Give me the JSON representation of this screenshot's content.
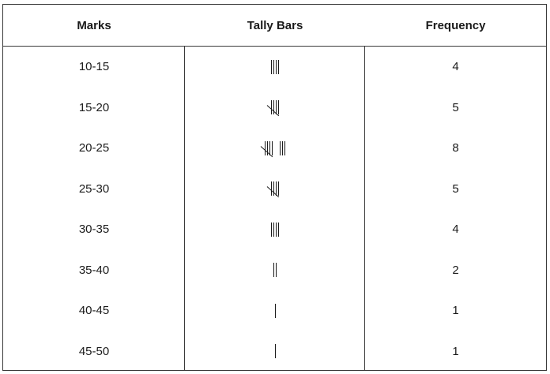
{
  "table": {
    "headers": [
      "Marks",
      "Tally Bars",
      "Frequency"
    ],
    "rows": [
      {
        "marks": "10-15",
        "frequency": "4"
      },
      {
        "marks": "15-20",
        "frequency": "5"
      },
      {
        "marks": "20-25",
        "frequency": "8"
      },
      {
        "marks": "25-30",
        "frequency": "5"
      },
      {
        "marks": "30-35",
        "frequency": "4"
      },
      {
        "marks": "35-40",
        "frequency": "2"
      },
      {
        "marks": "40-45",
        "frequency": "1"
      },
      {
        "marks": "45-50",
        "frequency": "1"
      }
    ],
    "tally_counts": [
      4,
      5,
      8,
      5,
      4,
      2,
      1,
      1
    ]
  }
}
